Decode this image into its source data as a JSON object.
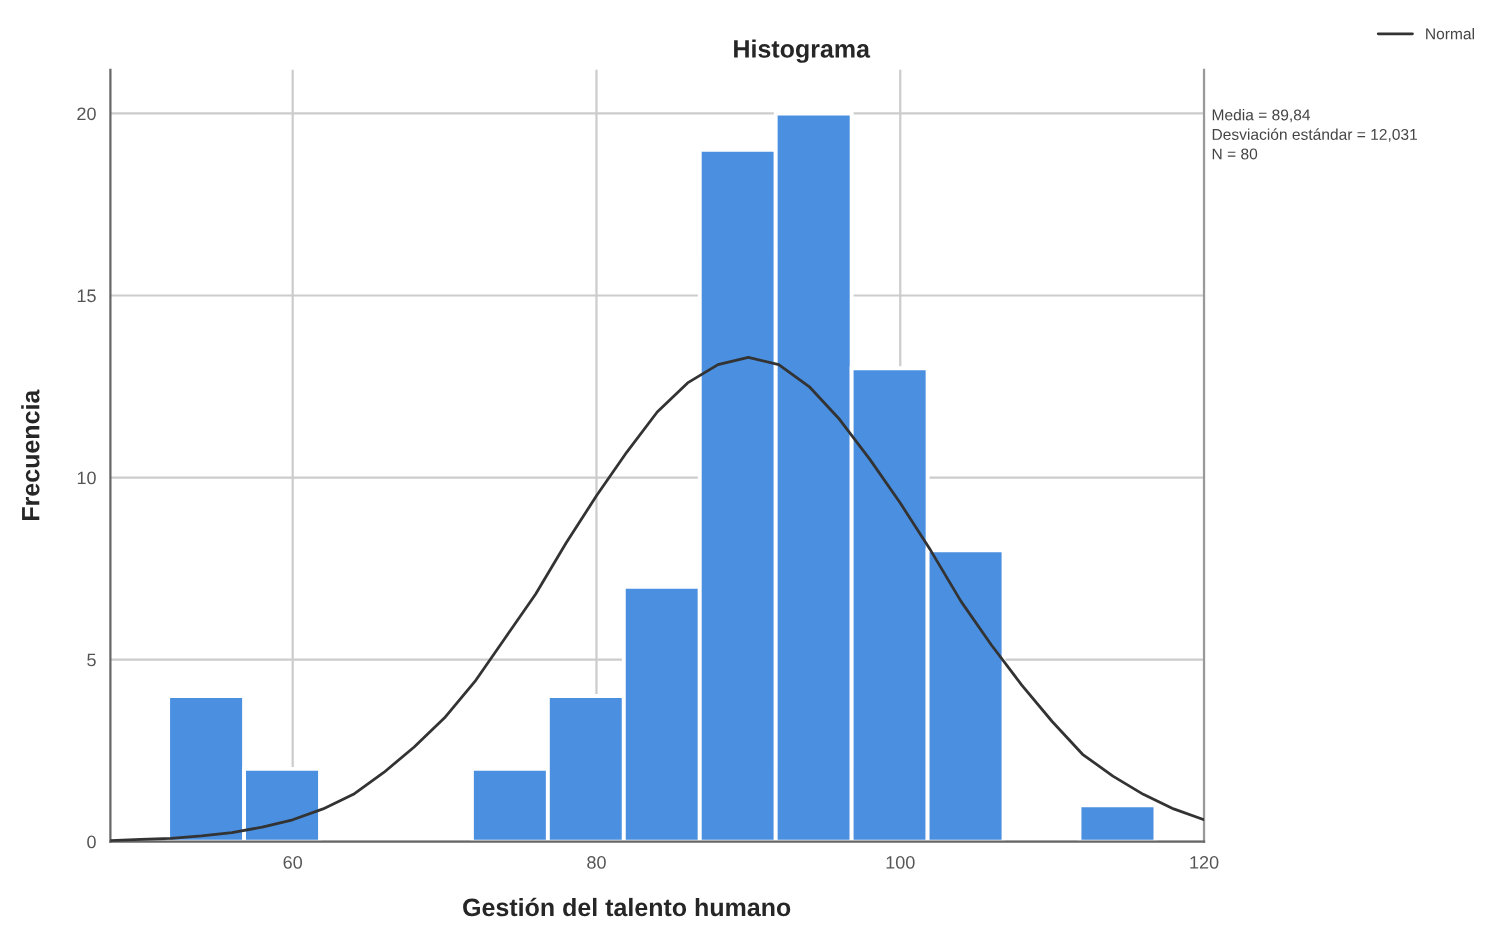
{
  "chart_data": {
    "type": "histogram",
    "title": "Histograma",
    "xlabel": "Gestión del talento humano",
    "ylabel": "Frecuencia",
    "bins": [
      51.8,
      56.8,
      61.8,
      66.8,
      71.8,
      76.8,
      81.8,
      86.8,
      91.8,
      96.8,
      101.8,
      106.8,
      111.8,
      116.8
    ],
    "series": [
      {
        "color": "#4a8fe0",
        "values": [
          4,
          2,
          0,
          0,
          2,
          4,
          7,
          19,
          20,
          13,
          8,
          0,
          1
        ]
      },
      {
        "type": "line",
        "name": "Normal",
        "color": "#333333",
        "x": [
          48,
          50,
          52,
          54,
          56,
          58,
          60,
          62,
          64,
          66,
          68,
          70,
          72,
          74,
          76,
          78,
          80,
          82,
          84,
          86,
          88,
          90,
          92,
          94,
          96,
          98,
          100,
          102,
          104,
          106,
          108,
          110,
          112,
          114,
          116,
          118,
          120
        ],
        "values": [
          0.03,
          0.06,
          0.09,
          0.16,
          0.25,
          0.4,
          0.6,
          0.9,
          1.3,
          1.9,
          2.6,
          3.4,
          4.4,
          5.6,
          6.8,
          8.2,
          9.5,
          10.7,
          11.8,
          12.6,
          13.1,
          13.3,
          13.1,
          12.5,
          11.6,
          10.5,
          9.3,
          8.0,
          6.6,
          5.4,
          4.3,
          3.3,
          2.4,
          1.8,
          1.3,
          0.9,
          0.6
        ]
      }
    ],
    "xlim": [
      48,
      120
    ],
    "ylim": [
      0,
      21.2
    ],
    "xticks": [
      60,
      80,
      100,
      120
    ],
    "yticks": [
      0,
      5,
      10,
      15,
      20
    ],
    "grid": true,
    "legend": "top right",
    "marker": "none",
    "line_style": "solid",
    "annotations": [
      "Media = 89,84",
      "Desviación estándar = 12,031",
      "N = 80"
    ]
  }
}
